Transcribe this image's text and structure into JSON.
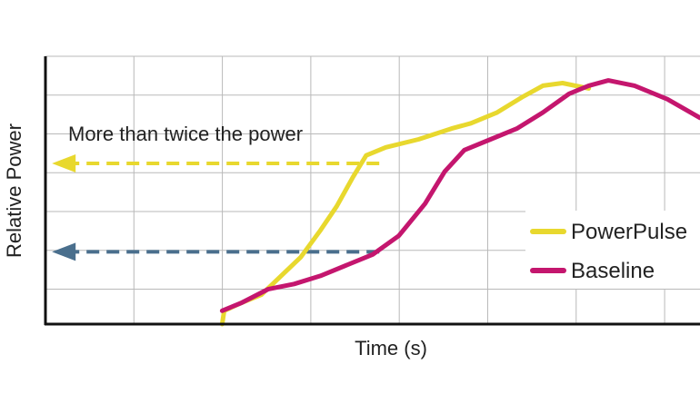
{
  "chart_data": {
    "type": "line",
    "title": "",
    "xlabel": "Time (s)",
    "ylabel": "Relative Power",
    "xlim": [
      0,
      1
    ],
    "ylim": [
      0,
      1
    ],
    "grid": true,
    "legend_placement": "right",
    "series": [
      {
        "name": "PowerPulse",
        "color": "#e8d82e",
        "points": [
          [
            0.27,
            0.0
          ],
          [
            0.273,
            0.05
          ],
          [
            0.3,
            0.08
          ],
          [
            0.33,
            0.11
          ],
          [
            0.36,
            0.18
          ],
          [
            0.39,
            0.25
          ],
          [
            0.42,
            0.35
          ],
          [
            0.445,
            0.44
          ],
          [
            0.47,
            0.55
          ],
          [
            0.49,
            0.63
          ],
          [
            0.52,
            0.66
          ],
          [
            0.57,
            0.69
          ],
          [
            0.62,
            0.73
          ],
          [
            0.65,
            0.75
          ],
          [
            0.69,
            0.79
          ],
          [
            0.73,
            0.85
          ],
          [
            0.76,
            0.89
          ],
          [
            0.79,
            0.9
          ],
          [
            0.83,
            0.88
          ]
        ]
      },
      {
        "name": "Baseline",
        "color": "#c4166e",
        "points": [
          [
            0.27,
            0.05
          ],
          [
            0.3,
            0.08
          ],
          [
            0.34,
            0.13
          ],
          [
            0.38,
            0.15
          ],
          [
            0.42,
            0.18
          ],
          [
            0.46,
            0.22
          ],
          [
            0.5,
            0.26
          ],
          [
            0.54,
            0.33
          ],
          [
            0.58,
            0.45
          ],
          [
            0.61,
            0.57
          ],
          [
            0.64,
            0.65
          ],
          [
            0.68,
            0.69
          ],
          [
            0.72,
            0.73
          ],
          [
            0.76,
            0.79
          ],
          [
            0.8,
            0.86
          ],
          [
            0.83,
            0.89
          ],
          [
            0.86,
            0.91
          ],
          [
            0.9,
            0.89
          ],
          [
            0.95,
            0.84
          ],
          [
            1.0,
            0.77
          ]
        ]
      }
    ],
    "annotations": [
      {
        "text": "More than twice the power",
        "y": 0.6,
        "x_from": 0.51,
        "x_to": 0.01,
        "color": "#e8d82e"
      },
      {
        "text": "",
        "y": 0.27,
        "x_from": 0.51,
        "x_to": 0.01,
        "color": "#4a6f8d"
      }
    ]
  }
}
